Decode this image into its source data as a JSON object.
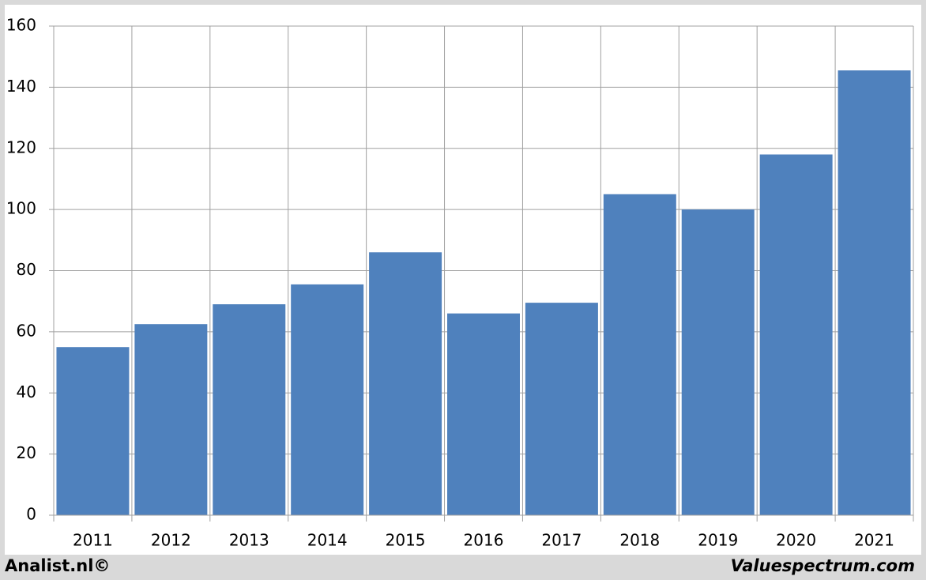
{
  "chart_data": {
    "type": "bar",
    "categories": [
      "2011",
      "2012",
      "2013",
      "2014",
      "2015",
      "2016",
      "2017",
      "2018",
      "2019",
      "2020",
      "2021"
    ],
    "values": [
      55,
      62.5,
      69,
      75.5,
      86,
      66,
      69.5,
      105,
      100,
      118,
      145.5
    ],
    "color": "#4f81bd",
    "ylim": [
      0,
      160
    ],
    "yticks": [
      0,
      20,
      40,
      60,
      80,
      100,
      120,
      140,
      160
    ],
    "grid": true,
    "footer": {
      "left": "Analist.nl©",
      "right": "Valuespectrum.com"
    }
  }
}
